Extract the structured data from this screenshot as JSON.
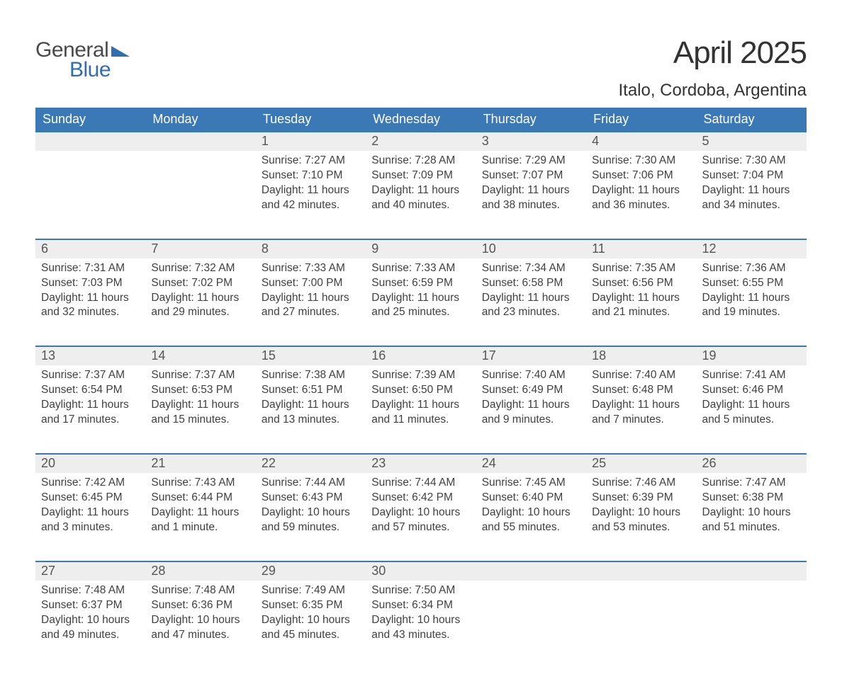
{
  "logo": {
    "word1": "General",
    "word2": "Blue",
    "flag_color": "#2f6eaf",
    "text_color": "#4a4a4a"
  },
  "header": {
    "title": "April 2025",
    "location": "Italo, Cordoba, Argentina"
  },
  "style": {
    "header_bg": "#3a78b6",
    "header_fg": "#ffffff",
    "daynum_bg": "#eeeeee",
    "row_border": "#3a78b6",
    "body_text": "#404040",
    "title_fontsize": 44,
    "location_fontsize": 24,
    "th_fontsize": 18,
    "daynum_fontsize": 18,
    "body_fontsize": 15.5
  },
  "weekdays": [
    "Sunday",
    "Monday",
    "Tuesday",
    "Wednesday",
    "Thursday",
    "Friday",
    "Saturday"
  ],
  "weeks": [
    [
      null,
      null,
      {
        "n": "1",
        "sr": "7:27 AM",
        "ss": "7:10 PM",
        "dl": "11 hours and 42 minutes."
      },
      {
        "n": "2",
        "sr": "7:28 AM",
        "ss": "7:09 PM",
        "dl": "11 hours and 40 minutes."
      },
      {
        "n": "3",
        "sr": "7:29 AM",
        "ss": "7:07 PM",
        "dl": "11 hours and 38 minutes."
      },
      {
        "n": "4",
        "sr": "7:30 AM",
        "ss": "7:06 PM",
        "dl": "11 hours and 36 minutes."
      },
      {
        "n": "5",
        "sr": "7:30 AM",
        "ss": "7:04 PM",
        "dl": "11 hours and 34 minutes."
      }
    ],
    [
      {
        "n": "6",
        "sr": "7:31 AM",
        "ss": "7:03 PM",
        "dl": "11 hours and 32 minutes."
      },
      {
        "n": "7",
        "sr": "7:32 AM",
        "ss": "7:02 PM",
        "dl": "11 hours and 29 minutes."
      },
      {
        "n": "8",
        "sr": "7:33 AM",
        "ss": "7:00 PM",
        "dl": "11 hours and 27 minutes."
      },
      {
        "n": "9",
        "sr": "7:33 AM",
        "ss": "6:59 PM",
        "dl": "11 hours and 25 minutes."
      },
      {
        "n": "10",
        "sr": "7:34 AM",
        "ss": "6:58 PM",
        "dl": "11 hours and 23 minutes."
      },
      {
        "n": "11",
        "sr": "7:35 AM",
        "ss": "6:56 PM",
        "dl": "11 hours and 21 minutes."
      },
      {
        "n": "12",
        "sr": "7:36 AM",
        "ss": "6:55 PM",
        "dl": "11 hours and 19 minutes."
      }
    ],
    [
      {
        "n": "13",
        "sr": "7:37 AM",
        "ss": "6:54 PM",
        "dl": "11 hours and 17 minutes."
      },
      {
        "n": "14",
        "sr": "7:37 AM",
        "ss": "6:53 PM",
        "dl": "11 hours and 15 minutes."
      },
      {
        "n": "15",
        "sr": "7:38 AM",
        "ss": "6:51 PM",
        "dl": "11 hours and 13 minutes."
      },
      {
        "n": "16",
        "sr": "7:39 AM",
        "ss": "6:50 PM",
        "dl": "11 hours and 11 minutes."
      },
      {
        "n": "17",
        "sr": "7:40 AM",
        "ss": "6:49 PM",
        "dl": "11 hours and 9 minutes."
      },
      {
        "n": "18",
        "sr": "7:40 AM",
        "ss": "6:48 PM",
        "dl": "11 hours and 7 minutes."
      },
      {
        "n": "19",
        "sr": "7:41 AM",
        "ss": "6:46 PM",
        "dl": "11 hours and 5 minutes."
      }
    ],
    [
      {
        "n": "20",
        "sr": "7:42 AM",
        "ss": "6:45 PM",
        "dl": "11 hours and 3 minutes."
      },
      {
        "n": "21",
        "sr": "7:43 AM",
        "ss": "6:44 PM",
        "dl": "11 hours and 1 minute."
      },
      {
        "n": "22",
        "sr": "7:44 AM",
        "ss": "6:43 PM",
        "dl": "10 hours and 59 minutes."
      },
      {
        "n": "23",
        "sr": "7:44 AM",
        "ss": "6:42 PM",
        "dl": "10 hours and 57 minutes."
      },
      {
        "n": "24",
        "sr": "7:45 AM",
        "ss": "6:40 PM",
        "dl": "10 hours and 55 minutes."
      },
      {
        "n": "25",
        "sr": "7:46 AM",
        "ss": "6:39 PM",
        "dl": "10 hours and 53 minutes."
      },
      {
        "n": "26",
        "sr": "7:47 AM",
        "ss": "6:38 PM",
        "dl": "10 hours and 51 minutes."
      }
    ],
    [
      {
        "n": "27",
        "sr": "7:48 AM",
        "ss": "6:37 PM",
        "dl": "10 hours and 49 minutes."
      },
      {
        "n": "28",
        "sr": "7:48 AM",
        "ss": "6:36 PM",
        "dl": "10 hours and 47 minutes."
      },
      {
        "n": "29",
        "sr": "7:49 AM",
        "ss": "6:35 PM",
        "dl": "10 hours and 45 minutes."
      },
      {
        "n": "30",
        "sr": "7:50 AM",
        "ss": "6:34 PM",
        "dl": "10 hours and 43 minutes."
      },
      null,
      null,
      null
    ]
  ],
  "labels": {
    "sunrise": "Sunrise: ",
    "sunset": "Sunset: ",
    "daylight": "Daylight: "
  }
}
